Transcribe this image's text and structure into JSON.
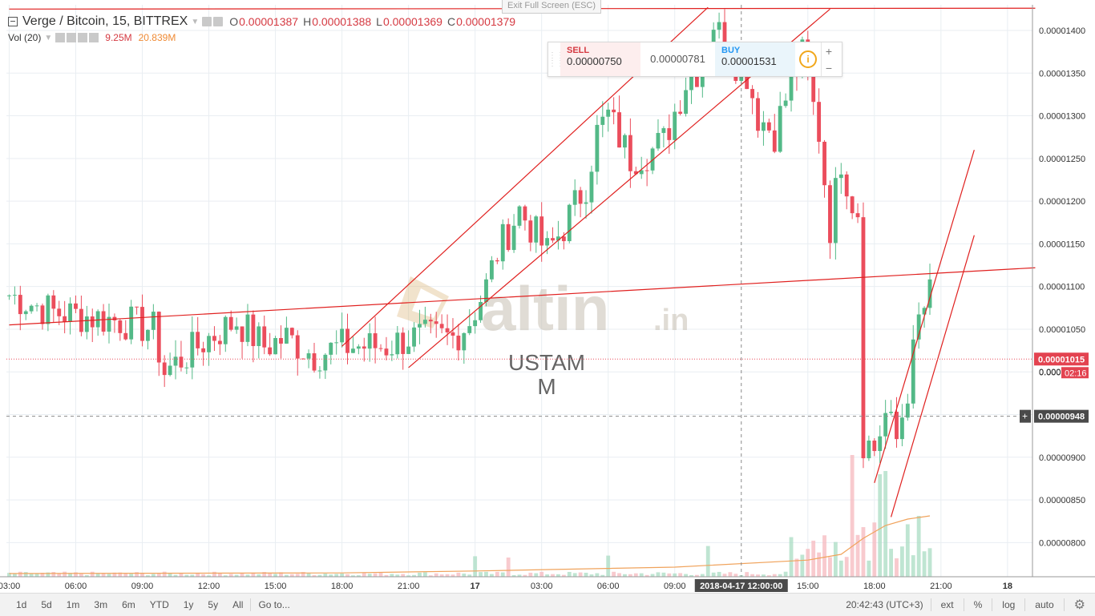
{
  "header": {
    "symbol_title": "Verge / Bitcoin, 15, BITTREX",
    "ohlc": [
      {
        "key": "O",
        "value": "0.00001387"
      },
      {
        "key": "H",
        "value": "0.00001388"
      },
      {
        "key": "L",
        "value": "0.00001369"
      },
      {
        "key": "C",
        "value": "0.00001379"
      }
    ],
    "exit_full_screen": "Exit Full Screen (ESC)"
  },
  "volume_legend": {
    "label": "Vol (20)",
    "value1": "9.25M",
    "value2": "20.839M"
  },
  "trade_panel": {
    "sell_label": "SELL",
    "sell_price": "0.00000750",
    "mid_price": "0.00000781",
    "buy_label": "BUY",
    "buy_price": "0.00001531",
    "info_icon": "i",
    "plus": "+",
    "minus": "−"
  },
  "watermark": {
    "brand": "altin",
    "suffix": ".in",
    "line1": "USTAM",
    "line2": "M"
  },
  "price_scale": {
    "current_price": "0.00001015",
    "countdown": "02:16",
    "partial_label": "0.000",
    "crosshair_price": "0.00000948"
  },
  "time_scale": {
    "crosshair_time": "2018-04-17 12:00:00"
  },
  "bottom_bar": {
    "ranges": [
      "1d",
      "5d",
      "1m",
      "3m",
      "6m",
      "YTD",
      "1y",
      "5y",
      "All"
    ],
    "goto": "Go to...",
    "clock": "20:42:43 (UTC+3)",
    "ext": "ext",
    "percent": "%",
    "log": "log",
    "auto": "auto"
  },
  "colors": {
    "up": "#53b987",
    "down": "#eb4d5c",
    "trendline": "#e0201f",
    "volume_ma": "#f0a35c",
    "grid": "#e9eef2"
  },
  "chart_data": {
    "type": "candlestick",
    "price_ticks": [
      "0.00000800",
      "0.00000850",
      "0.00000900",
      "0.00000950",
      "0.00001000",
      "0.00001050",
      "0.00001100",
      "0.00001150",
      "0.00001200",
      "0.00001250",
      "0.00001300",
      "0.00001350",
      "0.00001400"
    ],
    "ylim": [
      7.6e-06,
      1.43e-05
    ],
    "time_ticks": [
      {
        "label": "03:00",
        "bar": 0
      },
      {
        "label": "06:00",
        "bar": 12
      },
      {
        "label": "09:00",
        "bar": 24
      },
      {
        "label": "12:00",
        "bar": 36
      },
      {
        "label": "15:00",
        "bar": 48
      },
      {
        "label": "18:00",
        "bar": 60
      },
      {
        "label": "21:00",
        "bar": 72
      },
      {
        "label": "17",
        "bar": 84
      },
      {
        "label": "03:00",
        "bar": 96
      },
      {
        "label": "06:00",
        "bar": 108
      },
      {
        "label": "09:00",
        "bar": 120
      },
      {
        "label": "15:00",
        "bar": 144
      },
      {
        "label": "18:00",
        "bar": 156
      },
      {
        "label": "21:00",
        "bar": 168
      },
      {
        "label": "18",
        "bar": 180
      }
    ],
    "total_bars": 185,
    "last_bar": 166,
    "current_price": 1.015e-05,
    "crosshair": {
      "bar": 132,
      "price": 9.48e-06
    },
    "anchors": [
      [
        0,
        1.09e-05
      ],
      [
        8,
        1.07e-05
      ],
      [
        20,
        1.06e-05
      ],
      [
        26,
        1.05e-05
      ],
      [
        28,
        1e-05
      ],
      [
        32,
        1.02e-05
      ],
      [
        36,
        1.04e-05
      ],
      [
        41,
        1.06e-05
      ],
      [
        46,
        1.03e-05
      ],
      [
        50,
        1.04e-05
      ],
      [
        55,
        1.02e-05
      ],
      [
        60,
        1.03e-05
      ],
      [
        64,
        1.03e-05
      ],
      [
        68,
        1.03e-05
      ],
      [
        72,
        1.04e-05
      ],
      [
        76,
        1.04e-05
      ],
      [
        80,
        1.04e-05
      ],
      [
        83,
        1.06e-05
      ],
      [
        86,
        1.1e-05
      ],
      [
        88,
        1.14e-05
      ],
      [
        92,
        1.19e-05
      ],
      [
        95,
        1.16e-05
      ],
      [
        97,
        1.14e-05
      ],
      [
        100,
        1.17e-05
      ],
      [
        104,
        1.22e-05
      ],
      [
        106,
        1.28e-05
      ],
      [
        108,
        1.3e-05
      ],
      [
        112,
        1.25e-05
      ],
      [
        116,
        1.26e-05
      ],
      [
        118,
        1.27e-05
      ],
      [
        122,
        1.34e-05
      ],
      [
        125,
        1.36e-05
      ],
      [
        127,
        1.41e-05
      ],
      [
        130,
        1.37e-05
      ],
      [
        133,
        1.35e-05
      ],
      [
        135,
        1.3e-05
      ],
      [
        138,
        1.28e-05
      ],
      [
        141,
        1.34e-05
      ],
      [
        143,
        1.37e-05
      ],
      [
        145,
        1.31e-05
      ],
      [
        146,
        1.28e-05
      ],
      [
        148,
        1.17e-05
      ],
      [
        150,
        1.25e-05
      ],
      [
        152,
        1.2e-05
      ],
      [
        153,
        1.19e-05
      ],
      [
        154,
        9.2e-06
      ],
      [
        156,
        9.1e-06
      ],
      [
        158,
        9.5e-06
      ],
      [
        160,
        9.2e-06
      ],
      [
        162,
        9.8e-06
      ],
      [
        164,
        1.06e-05
      ],
      [
        166,
        1.09e-05
      ],
      [
        168,
        1.08e-05
      ],
      [
        170,
        1.01e-05
      ]
    ],
    "volume": {
      "max": 20000000,
      "ma_level": 1200000,
      "spikes": [
        {
          "bar": 84,
          "value": 3200000
        },
        {
          "bar": 90,
          "value": 3000000
        },
        {
          "bar": 108,
          "value": 3300000
        },
        {
          "bar": 126,
          "value": 4800000
        },
        {
          "bar": 152,
          "value": 19000000
        },
        {
          "bar": 157,
          "value": 16000000
        },
        {
          "bar": 158,
          "value": 16500000
        },
        {
          "bar": 164,
          "value": 9500000
        }
      ],
      "ma_series": [
        [
          0,
          500000
        ],
        [
          60,
          600000
        ],
        [
          84,
          900000
        ],
        [
          120,
          1500000
        ],
        [
          144,
          2600000
        ],
        [
          150,
          3500000
        ],
        [
          154,
          6000000
        ],
        [
          158,
          8000000
        ],
        [
          162,
          9000000
        ],
        [
          166,
          9500000
        ]
      ]
    },
    "trendlines": [
      {
        "from": [
          0,
          1.425e-05
        ],
        "to": [
          185,
          1.426e-05
        ]
      },
      {
        "from": [
          0,
          1.055e-05
        ],
        "to": [
          185,
          1.122e-05
        ]
      },
      {
        "from": [
          60,
          1.03e-05
        ],
        "to": [
          126,
          1.427e-05
        ]
      },
      {
        "from": [
          72,
          1.005e-05
        ],
        "to": [
          148,
          1.425e-05
        ]
      },
      {
        "from": [
          156,
          8.7e-06
        ],
        "to": [
          174,
          1.26e-05
        ]
      },
      {
        "from": [
          159,
          8.3e-06
        ],
        "to": [
          174,
          1.16e-05
        ]
      }
    ]
  }
}
